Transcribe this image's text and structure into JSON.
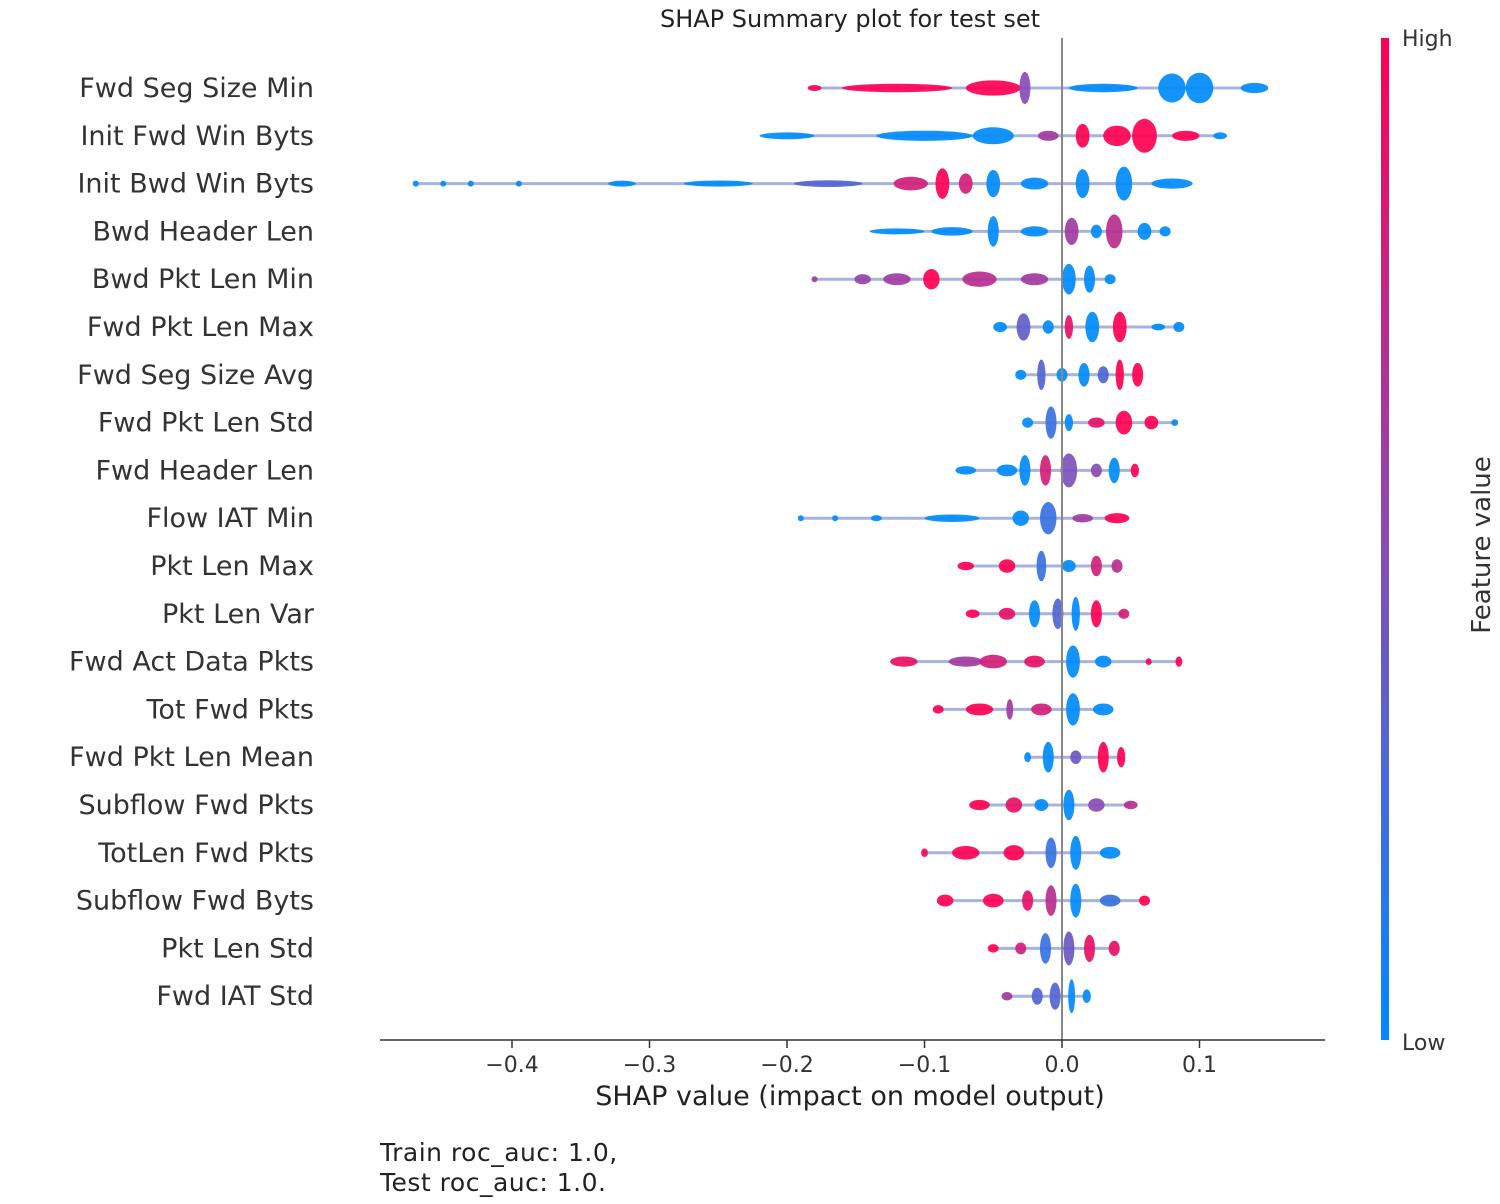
{
  "chart_data": {
    "type": "scatter",
    "subtype": "shap-beeswarm",
    "title": "SHAP Summary plot for test set",
    "xlabel": "SHAP value (impact on model output)",
    "xlim": [
      -0.5,
      0.19
    ],
    "xticks": [
      -0.4,
      -0.3,
      -0.2,
      -0.1,
      0.0,
      0.1
    ],
    "xtick_labels": [
      "−0.4",
      "−0.3",
      "−0.2",
      "−0.1",
      "0.0",
      "0.1"
    ],
    "grid": false,
    "colorbar": {
      "label": "Feature value",
      "high_label": "High",
      "low_label": "Low",
      "high_color": "#ff0052",
      "low_color": "#008bfb"
    },
    "features": [
      {
        "name": "Fwd Seg Size Min",
        "clusters": [
          {
            "x": -0.18,
            "w": 0.01,
            "h": 0.15,
            "c": 1
          },
          {
            "x": -0.12,
            "w": 0.08,
            "h": 0.25,
            "c": 1
          },
          {
            "x": -0.05,
            "w": 0.04,
            "h": 0.45,
            "c": 1
          },
          {
            "x": -0.027,
            "w": 0.008,
            "h": 0.95,
            "c": 0.5
          },
          {
            "x": 0.03,
            "w": 0.05,
            "h": 0.25,
            "c": 0
          },
          {
            "x": 0.08,
            "w": 0.02,
            "h": 0.85,
            "c": 0
          },
          {
            "x": 0.1,
            "w": 0.02,
            "h": 0.9,
            "c": 0
          },
          {
            "x": 0.14,
            "w": 0.02,
            "h": 0.3,
            "c": 0
          }
        ]
      },
      {
        "name": "Init Fwd Win Byts",
        "clusters": [
          {
            "x": -0.2,
            "w": 0.04,
            "h": 0.2,
            "c": 0
          },
          {
            "x": -0.1,
            "w": 0.07,
            "h": 0.3,
            "c": 0
          },
          {
            "x": -0.05,
            "w": 0.03,
            "h": 0.5,
            "c": 0
          },
          {
            "x": -0.01,
            "w": 0.015,
            "h": 0.3,
            "c": 0.6
          },
          {
            "x": 0.015,
            "w": 0.01,
            "h": 0.7,
            "c": 1
          },
          {
            "x": 0.04,
            "w": 0.02,
            "h": 0.6,
            "c": 1
          },
          {
            "x": 0.06,
            "w": 0.018,
            "h": 1.0,
            "c": 1
          },
          {
            "x": 0.09,
            "w": 0.02,
            "h": 0.3,
            "c": 1
          },
          {
            "x": 0.115,
            "w": 0.01,
            "h": 0.2,
            "c": 0
          }
        ]
      },
      {
        "name": "Init Bwd Win Byts",
        "clusters": [
          {
            "x": -0.47,
            "w": 0.002,
            "h": 0.12,
            "c": 0
          },
          {
            "x": -0.45,
            "w": 0.002,
            "h": 0.12,
            "c": 0
          },
          {
            "x": -0.43,
            "w": 0.002,
            "h": 0.12,
            "c": 0
          },
          {
            "x": -0.395,
            "w": 0.002,
            "h": 0.12,
            "c": 0
          },
          {
            "x": -0.32,
            "w": 0.02,
            "h": 0.15,
            "c": 0
          },
          {
            "x": -0.25,
            "w": 0.05,
            "h": 0.18,
            "c": 0
          },
          {
            "x": -0.17,
            "w": 0.05,
            "h": 0.2,
            "c": 0.3
          },
          {
            "x": -0.11,
            "w": 0.025,
            "h": 0.4,
            "c": 0.8
          },
          {
            "x": -0.087,
            "w": 0.01,
            "h": 0.9,
            "c": 1
          },
          {
            "x": -0.07,
            "w": 0.01,
            "h": 0.6,
            "c": 0.8
          },
          {
            "x": -0.05,
            "w": 0.01,
            "h": 0.8,
            "c": 0
          },
          {
            "x": -0.02,
            "w": 0.02,
            "h": 0.35,
            "c": 0
          },
          {
            "x": 0.015,
            "w": 0.01,
            "h": 0.85,
            "c": 0
          },
          {
            "x": 0.045,
            "w": 0.012,
            "h": 1.0,
            "c": 0
          },
          {
            "x": 0.08,
            "w": 0.03,
            "h": 0.3,
            "c": 0
          }
        ]
      },
      {
        "name": "Bwd Header Len",
        "clusters": [
          {
            "x": -0.12,
            "w": 0.04,
            "h": 0.15,
            "c": 0
          },
          {
            "x": -0.08,
            "w": 0.03,
            "h": 0.25,
            "c": 0
          },
          {
            "x": -0.05,
            "w": 0.008,
            "h": 0.9,
            "c": 0
          },
          {
            "x": -0.02,
            "w": 0.02,
            "h": 0.3,
            "c": 0
          },
          {
            "x": 0.007,
            "w": 0.01,
            "h": 0.8,
            "c": 0.6
          },
          {
            "x": 0.025,
            "w": 0.008,
            "h": 0.4,
            "c": 0
          },
          {
            "x": 0.038,
            "w": 0.012,
            "h": 1.0,
            "c": 0.7
          },
          {
            "x": 0.06,
            "w": 0.01,
            "h": 0.5,
            "c": 0
          },
          {
            "x": 0.075,
            "w": 0.008,
            "h": 0.3,
            "c": 0
          }
        ]
      },
      {
        "name": "Bwd Pkt Len Min",
        "clusters": [
          {
            "x": -0.18,
            "w": 0.003,
            "h": 0.15,
            "c": 0.6
          },
          {
            "x": -0.145,
            "w": 0.012,
            "h": 0.3,
            "c": 0.55
          },
          {
            "x": -0.12,
            "w": 0.02,
            "h": 0.35,
            "c": 0.6
          },
          {
            "x": -0.095,
            "w": 0.012,
            "h": 0.6,
            "c": 1
          },
          {
            "x": -0.06,
            "w": 0.025,
            "h": 0.45,
            "c": 0.7
          },
          {
            "x": -0.02,
            "w": 0.02,
            "h": 0.35,
            "c": 0.6
          },
          {
            "x": 0.005,
            "w": 0.01,
            "h": 0.9,
            "c": 0
          },
          {
            "x": 0.02,
            "w": 0.008,
            "h": 0.8,
            "c": 0
          },
          {
            "x": 0.035,
            "w": 0.008,
            "h": 0.3,
            "c": 0
          }
        ]
      },
      {
        "name": "Fwd Pkt Len Max",
        "clusters": [
          {
            "x": -0.045,
            "w": 0.01,
            "h": 0.3,
            "c": 0
          },
          {
            "x": -0.028,
            "w": 0.01,
            "h": 0.8,
            "c": 0.35
          },
          {
            "x": -0.01,
            "w": 0.008,
            "h": 0.4,
            "c": 0
          },
          {
            "x": 0.005,
            "w": 0.006,
            "h": 0.7,
            "c": 0.9
          },
          {
            "x": 0.022,
            "w": 0.01,
            "h": 0.9,
            "c": 0
          },
          {
            "x": 0.042,
            "w": 0.01,
            "h": 0.9,
            "c": 1
          },
          {
            "x": 0.07,
            "w": 0.01,
            "h": 0.2,
            "c": 0
          },
          {
            "x": 0.085,
            "w": 0.008,
            "h": 0.3,
            "c": 0
          }
        ]
      },
      {
        "name": "Fwd Seg Size Avg",
        "clusters": [
          {
            "x": -0.03,
            "w": 0.008,
            "h": 0.3,
            "c": 0
          },
          {
            "x": -0.015,
            "w": 0.006,
            "h": 0.9,
            "c": 0.3
          },
          {
            "x": 0.0,
            "w": 0.008,
            "h": 0.4,
            "c": 0
          },
          {
            "x": 0.016,
            "w": 0.008,
            "h": 0.7,
            "c": 0
          },
          {
            "x": 0.03,
            "w": 0.008,
            "h": 0.5,
            "c": 0.3
          },
          {
            "x": 0.042,
            "w": 0.006,
            "h": 0.9,
            "c": 1
          },
          {
            "x": 0.055,
            "w": 0.008,
            "h": 0.7,
            "c": 1
          }
        ]
      },
      {
        "name": "Fwd Pkt Len Std",
        "clusters": [
          {
            "x": -0.025,
            "w": 0.008,
            "h": 0.3,
            "c": 0
          },
          {
            "x": -0.008,
            "w": 0.008,
            "h": 0.95,
            "c": 0.2
          },
          {
            "x": 0.005,
            "w": 0.006,
            "h": 0.5,
            "c": 0
          },
          {
            "x": 0.025,
            "w": 0.012,
            "h": 0.3,
            "c": 0.9
          },
          {
            "x": 0.045,
            "w": 0.012,
            "h": 0.7,
            "c": 1
          },
          {
            "x": 0.065,
            "w": 0.01,
            "h": 0.4,
            "c": 1
          },
          {
            "x": 0.082,
            "w": 0.005,
            "h": 0.2,
            "c": 0
          }
        ]
      },
      {
        "name": "Fwd Header Len",
        "clusters": [
          {
            "x": -0.07,
            "w": 0.015,
            "h": 0.25,
            "c": 0
          },
          {
            "x": -0.04,
            "w": 0.015,
            "h": 0.35,
            "c": 0
          },
          {
            "x": -0.027,
            "w": 0.008,
            "h": 0.9,
            "c": 0
          },
          {
            "x": -0.012,
            "w": 0.008,
            "h": 0.9,
            "c": 0.8
          },
          {
            "x": 0.005,
            "w": 0.012,
            "h": 1.0,
            "c": 0.45
          },
          {
            "x": 0.025,
            "w": 0.008,
            "h": 0.4,
            "c": 0.5
          },
          {
            "x": 0.038,
            "w": 0.008,
            "h": 0.75,
            "c": 0
          },
          {
            "x": 0.053,
            "w": 0.006,
            "h": 0.4,
            "c": 1
          }
        ]
      },
      {
        "name": "Flow IAT Min",
        "clusters": [
          {
            "x": -0.19,
            "w": 0.003,
            "h": 0.15,
            "c": 0
          },
          {
            "x": -0.165,
            "w": 0.004,
            "h": 0.15,
            "c": 0
          },
          {
            "x": -0.135,
            "w": 0.008,
            "h": 0.18,
            "c": 0
          },
          {
            "x": -0.08,
            "w": 0.04,
            "h": 0.22,
            "c": 0
          },
          {
            "x": -0.03,
            "w": 0.012,
            "h": 0.45,
            "c": 0
          },
          {
            "x": -0.01,
            "w": 0.012,
            "h": 0.95,
            "c": 0.2
          },
          {
            "x": 0.015,
            "w": 0.015,
            "h": 0.25,
            "c": 0.6
          },
          {
            "x": 0.04,
            "w": 0.018,
            "h": 0.3,
            "c": 1
          }
        ]
      },
      {
        "name": "Pkt Len Max",
        "clusters": [
          {
            "x": -0.07,
            "w": 0.012,
            "h": 0.25,
            "c": 1
          },
          {
            "x": -0.04,
            "w": 0.012,
            "h": 0.4,
            "c": 1
          },
          {
            "x": -0.015,
            "w": 0.007,
            "h": 0.9,
            "c": 0.2
          },
          {
            "x": 0.005,
            "w": 0.01,
            "h": 0.35,
            "c": 0
          },
          {
            "x": 0.025,
            "w": 0.008,
            "h": 0.6,
            "c": 0.8
          },
          {
            "x": 0.04,
            "w": 0.008,
            "h": 0.4,
            "c": 0.7
          }
        ]
      },
      {
        "name": "Pkt Len Var",
        "clusters": [
          {
            "x": -0.065,
            "w": 0.01,
            "h": 0.25,
            "c": 1
          },
          {
            "x": -0.04,
            "w": 0.012,
            "h": 0.35,
            "c": 0.9
          },
          {
            "x": -0.02,
            "w": 0.008,
            "h": 0.8,
            "c": 0
          },
          {
            "x": -0.003,
            "w": 0.008,
            "h": 0.9,
            "c": 0.3
          },
          {
            "x": 0.01,
            "w": 0.006,
            "h": 1.0,
            "c": 0
          },
          {
            "x": 0.025,
            "w": 0.008,
            "h": 0.8,
            "c": 1
          },
          {
            "x": 0.045,
            "w": 0.008,
            "h": 0.3,
            "c": 0.8
          }
        ]
      },
      {
        "name": "Fwd Act Data Pkts",
        "clusters": [
          {
            "x": -0.115,
            "w": 0.02,
            "h": 0.3,
            "c": 0.9
          },
          {
            "x": -0.07,
            "w": 0.025,
            "h": 0.3,
            "c": 0.6
          },
          {
            "x": -0.05,
            "w": 0.02,
            "h": 0.4,
            "c": 0.8
          },
          {
            "x": -0.02,
            "w": 0.015,
            "h": 0.35,
            "c": 0.9
          },
          {
            "x": 0.008,
            "w": 0.01,
            "h": 0.95,
            "c": 0
          },
          {
            "x": 0.03,
            "w": 0.012,
            "h": 0.35,
            "c": 0
          },
          {
            "x": 0.063,
            "w": 0.003,
            "h": 0.2,
            "c": 1
          },
          {
            "x": 0.085,
            "w": 0.005,
            "h": 0.3,
            "c": 1
          }
        ]
      },
      {
        "name": "Tot Fwd Pkts",
        "clusters": [
          {
            "x": -0.09,
            "w": 0.008,
            "h": 0.25,
            "c": 1
          },
          {
            "x": -0.06,
            "w": 0.02,
            "h": 0.35,
            "c": 1
          },
          {
            "x": -0.038,
            "w": 0.005,
            "h": 0.6,
            "c": 0.6
          },
          {
            "x": -0.015,
            "w": 0.015,
            "h": 0.35,
            "c": 0.8
          },
          {
            "x": 0.008,
            "w": 0.01,
            "h": 0.95,
            "c": 0
          },
          {
            "x": 0.03,
            "w": 0.015,
            "h": 0.35,
            "c": 0
          }
        ]
      },
      {
        "name": "Fwd Pkt Len Mean",
        "clusters": [
          {
            "x": -0.025,
            "w": 0.005,
            "h": 0.3,
            "c": 0
          },
          {
            "x": -0.01,
            "w": 0.008,
            "h": 0.9,
            "c": 0
          },
          {
            "x": 0.01,
            "w": 0.008,
            "h": 0.4,
            "c": 0.4
          },
          {
            "x": 0.03,
            "w": 0.008,
            "h": 0.9,
            "c": 1
          },
          {
            "x": 0.043,
            "w": 0.006,
            "h": 0.6,
            "c": 1
          }
        ]
      },
      {
        "name": "Subflow Fwd Pkts",
        "clusters": [
          {
            "x": -0.06,
            "w": 0.015,
            "h": 0.3,
            "c": 1
          },
          {
            "x": -0.035,
            "w": 0.012,
            "h": 0.45,
            "c": 0.9
          },
          {
            "x": -0.015,
            "w": 0.01,
            "h": 0.35,
            "c": 0
          },
          {
            "x": 0.005,
            "w": 0.008,
            "h": 0.9,
            "c": 0
          },
          {
            "x": 0.025,
            "w": 0.012,
            "h": 0.4,
            "c": 0.5
          },
          {
            "x": 0.05,
            "w": 0.01,
            "h": 0.25,
            "c": 0.7
          }
        ]
      },
      {
        "name": "TotLen Fwd Pkts",
        "clusters": [
          {
            "x": -0.1,
            "w": 0.005,
            "h": 0.25,
            "c": 1
          },
          {
            "x": -0.07,
            "w": 0.02,
            "h": 0.4,
            "c": 1
          },
          {
            "x": -0.035,
            "w": 0.015,
            "h": 0.45,
            "c": 1
          },
          {
            "x": -0.008,
            "w": 0.008,
            "h": 0.9,
            "c": 0.2
          },
          {
            "x": 0.01,
            "w": 0.008,
            "h": 1.0,
            "c": 0
          },
          {
            "x": 0.035,
            "w": 0.015,
            "h": 0.35,
            "c": 0
          }
        ]
      },
      {
        "name": "Subflow Fwd Byts",
        "clusters": [
          {
            "x": -0.085,
            "w": 0.012,
            "h": 0.35,
            "c": 1
          },
          {
            "x": -0.05,
            "w": 0.015,
            "h": 0.4,
            "c": 1
          },
          {
            "x": -0.025,
            "w": 0.008,
            "h": 0.6,
            "c": 0.9
          },
          {
            "x": -0.008,
            "w": 0.008,
            "h": 0.9,
            "c": 0.7
          },
          {
            "x": 0.01,
            "w": 0.008,
            "h": 1.0,
            "c": 0
          },
          {
            "x": 0.035,
            "w": 0.015,
            "h": 0.35,
            "c": 0.2
          },
          {
            "x": 0.06,
            "w": 0.008,
            "h": 0.3,
            "c": 1
          }
        ]
      },
      {
        "name": "Pkt Len Std",
        "clusters": [
          {
            "x": -0.05,
            "w": 0.008,
            "h": 0.25,
            "c": 1
          },
          {
            "x": -0.03,
            "w": 0.008,
            "h": 0.35,
            "c": 0.8
          },
          {
            "x": -0.012,
            "w": 0.008,
            "h": 0.9,
            "c": 0.2
          },
          {
            "x": 0.005,
            "w": 0.008,
            "h": 1.0,
            "c": 0.4
          },
          {
            "x": 0.02,
            "w": 0.008,
            "h": 0.8,
            "c": 0.9
          },
          {
            "x": 0.038,
            "w": 0.008,
            "h": 0.45,
            "c": 0.9
          }
        ]
      },
      {
        "name": "Fwd IAT Std",
        "clusters": [
          {
            "x": -0.04,
            "w": 0.008,
            "h": 0.25,
            "c": 0.6
          },
          {
            "x": -0.018,
            "w": 0.008,
            "h": 0.5,
            "c": 0.3
          },
          {
            "x": -0.005,
            "w": 0.008,
            "h": 0.8,
            "c": 0.3
          },
          {
            "x": 0.007,
            "w": 0.005,
            "h": 1.0,
            "c": 0
          },
          {
            "x": 0.018,
            "w": 0.006,
            "h": 0.4,
            "c": 0
          }
        ]
      }
    ]
  },
  "footer": {
    "train": "Train roc_auc: 1.0,",
    "test": "Test roc_auc: 1.0."
  }
}
